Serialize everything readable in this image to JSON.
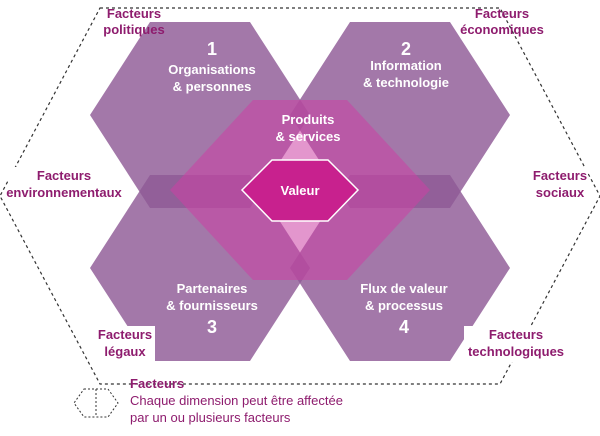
{
  "colors": {
    "hex_fill": "#8f5a96",
    "center_fill": "#cc3fa4",
    "value_fill": "#c8218e",
    "factor_text": "#8e1c6e",
    "dashed_outline": "#333333"
  },
  "dimensions": [
    {
      "number": "1",
      "line1": "Organisations",
      "line2": "& personnes"
    },
    {
      "number": "2",
      "line1": "Information",
      "line2": "& technologie"
    },
    {
      "number": "3",
      "line1": "Partenaires",
      "line2": "& fournisseurs"
    },
    {
      "number": "4",
      "line1": "Flux de valeur",
      "line2": "& processus"
    }
  ],
  "center": {
    "line1": "Produits",
    "line2": "& services"
  },
  "value": {
    "label": "Valeur"
  },
  "factors": {
    "politiques": {
      "line1": "Facteurs",
      "line2": "politiques"
    },
    "economiques": {
      "line1": "Facteurs",
      "line2": "économiques"
    },
    "environnementaux": {
      "line1": "Facteurs",
      "line2": "environnementaux"
    },
    "sociaux": {
      "line1": "Facteurs",
      "line2": "sociaux"
    },
    "legaux": {
      "line1": "Facteurs",
      "line2": "légaux"
    },
    "technologiques": {
      "line1": "Facteurs",
      "line2": "technologiques"
    }
  },
  "legend": {
    "title": "Facteurs",
    "line1": "Chaque dimension peut être affectée",
    "line2": "par un ou plusieurs facteurs"
  }
}
